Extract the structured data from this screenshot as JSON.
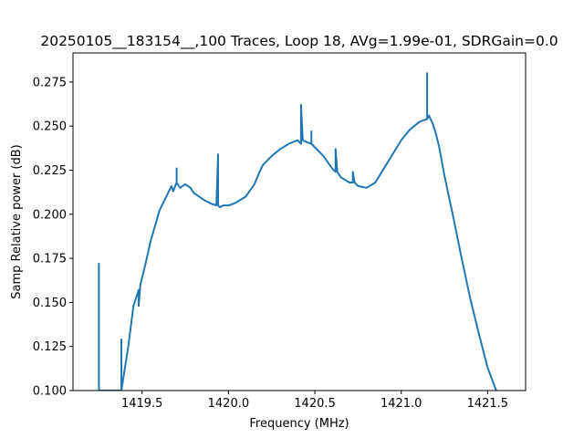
{
  "chart_data": {
    "type": "line",
    "title": "20250105__183154__,100 Traces, Loop 18, AVg=1.99e-01, SDRGain=0.0",
    "xlabel": "Frequency (MHz)",
    "ylabel": "Samp Relative power (dB)",
    "xlim": [
      1419.1,
      1421.72
    ],
    "ylim": [
      0.1,
      0.2915
    ],
    "xticks": [
      {
        "value": 1419.5,
        "label": "1419.5"
      },
      {
        "value": 1420.0,
        "label": "1420.0"
      },
      {
        "value": 1420.5,
        "label": "1420.5"
      },
      {
        "value": 1421.0,
        "label": "1421.0"
      },
      {
        "value": 1421.5,
        "label": "1421.5"
      }
    ],
    "yticks": [
      {
        "value": 0.1,
        "label": "0.100"
      },
      {
        "value": 0.125,
        "label": "0.125"
      },
      {
        "value": 0.15,
        "label": "0.150"
      },
      {
        "value": 0.175,
        "label": "0.175"
      },
      {
        "value": 0.2,
        "label": "0.200"
      },
      {
        "value": 0.225,
        "label": "0.225"
      },
      {
        "value": 0.25,
        "label": "0.250"
      },
      {
        "value": 0.275,
        "label": "0.275"
      }
    ],
    "grid": false,
    "series": [
      {
        "color": "#1f77b4",
        "x": [
          1419.25,
          1419.25,
          1419.25,
          1419.38,
          1419.38,
          1419.38,
          1419.38,
          1419.42,
          1419.45,
          1419.48,
          1419.48,
          1419.49,
          1419.52,
          1419.55,
          1419.58,
          1419.6,
          1419.63,
          1419.65,
          1419.67,
          1419.68,
          1419.7,
          1419.7,
          1419.7,
          1419.72,
          1419.75,
          1419.78,
          1419.8,
          1419.83,
          1419.86,
          1419.9,
          1419.93,
          1419.94,
          1419.94,
          1419.95,
          1419.97,
          1420.0,
          1420.03,
          1420.05,
          1420.1,
          1420.15,
          1420.18,
          1420.2,
          1420.25,
          1420.3,
          1420.35,
          1420.4,
          1420.42,
          1420.42,
          1420.43,
          1420.45,
          1420.48,
          1420.48,
          1420.48,
          1420.5,
          1420.55,
          1420.6,
          1420.62,
          1420.62,
          1420.63,
          1420.65,
          1420.7,
          1420.72,
          1420.72,
          1420.73,
          1420.75,
          1420.8,
          1420.85,
          1420.9,
          1420.95,
          1421.0,
          1421.05,
          1421.1,
          1421.12,
          1421.15,
          1421.15,
          1421.15,
          1421.16,
          1421.18,
          1421.2,
          1421.22,
          1421.25,
          1421.3,
          1421.35,
          1421.4,
          1421.45,
          1421.5,
          1421.55
        ],
        "y": [
          0.1,
          0.172,
          0.1,
          0.1,
          0.129,
          0.1,
          0.1,
          0.125,
          0.148,
          0.157,
          0.148,
          0.16,
          0.172,
          0.185,
          0.195,
          0.202,
          0.208,
          0.212,
          0.216,
          0.213,
          0.218,
          0.226,
          0.218,
          0.215,
          0.217,
          0.215,
          0.212,
          0.21,
          0.208,
          0.206,
          0.205,
          0.234,
          0.205,
          0.204,
          0.205,
          0.205,
          0.206,
          0.207,
          0.21,
          0.217,
          0.224,
          0.228,
          0.233,
          0.237,
          0.24,
          0.242,
          0.24,
          0.262,
          0.242,
          0.241,
          0.24,
          0.247,
          0.24,
          0.238,
          0.233,
          0.226,
          0.224,
          0.237,
          0.224,
          0.221,
          0.218,
          0.218,
          0.224,
          0.218,
          0.216,
          0.215,
          0.218,
          0.226,
          0.234,
          0.242,
          0.248,
          0.252,
          0.253,
          0.254,
          0.28,
          0.254,
          0.256,
          0.252,
          0.246,
          0.238,
          0.222,
          0.199,
          0.175,
          0.152,
          0.132,
          0.113,
          0.1
        ]
      }
    ]
  }
}
